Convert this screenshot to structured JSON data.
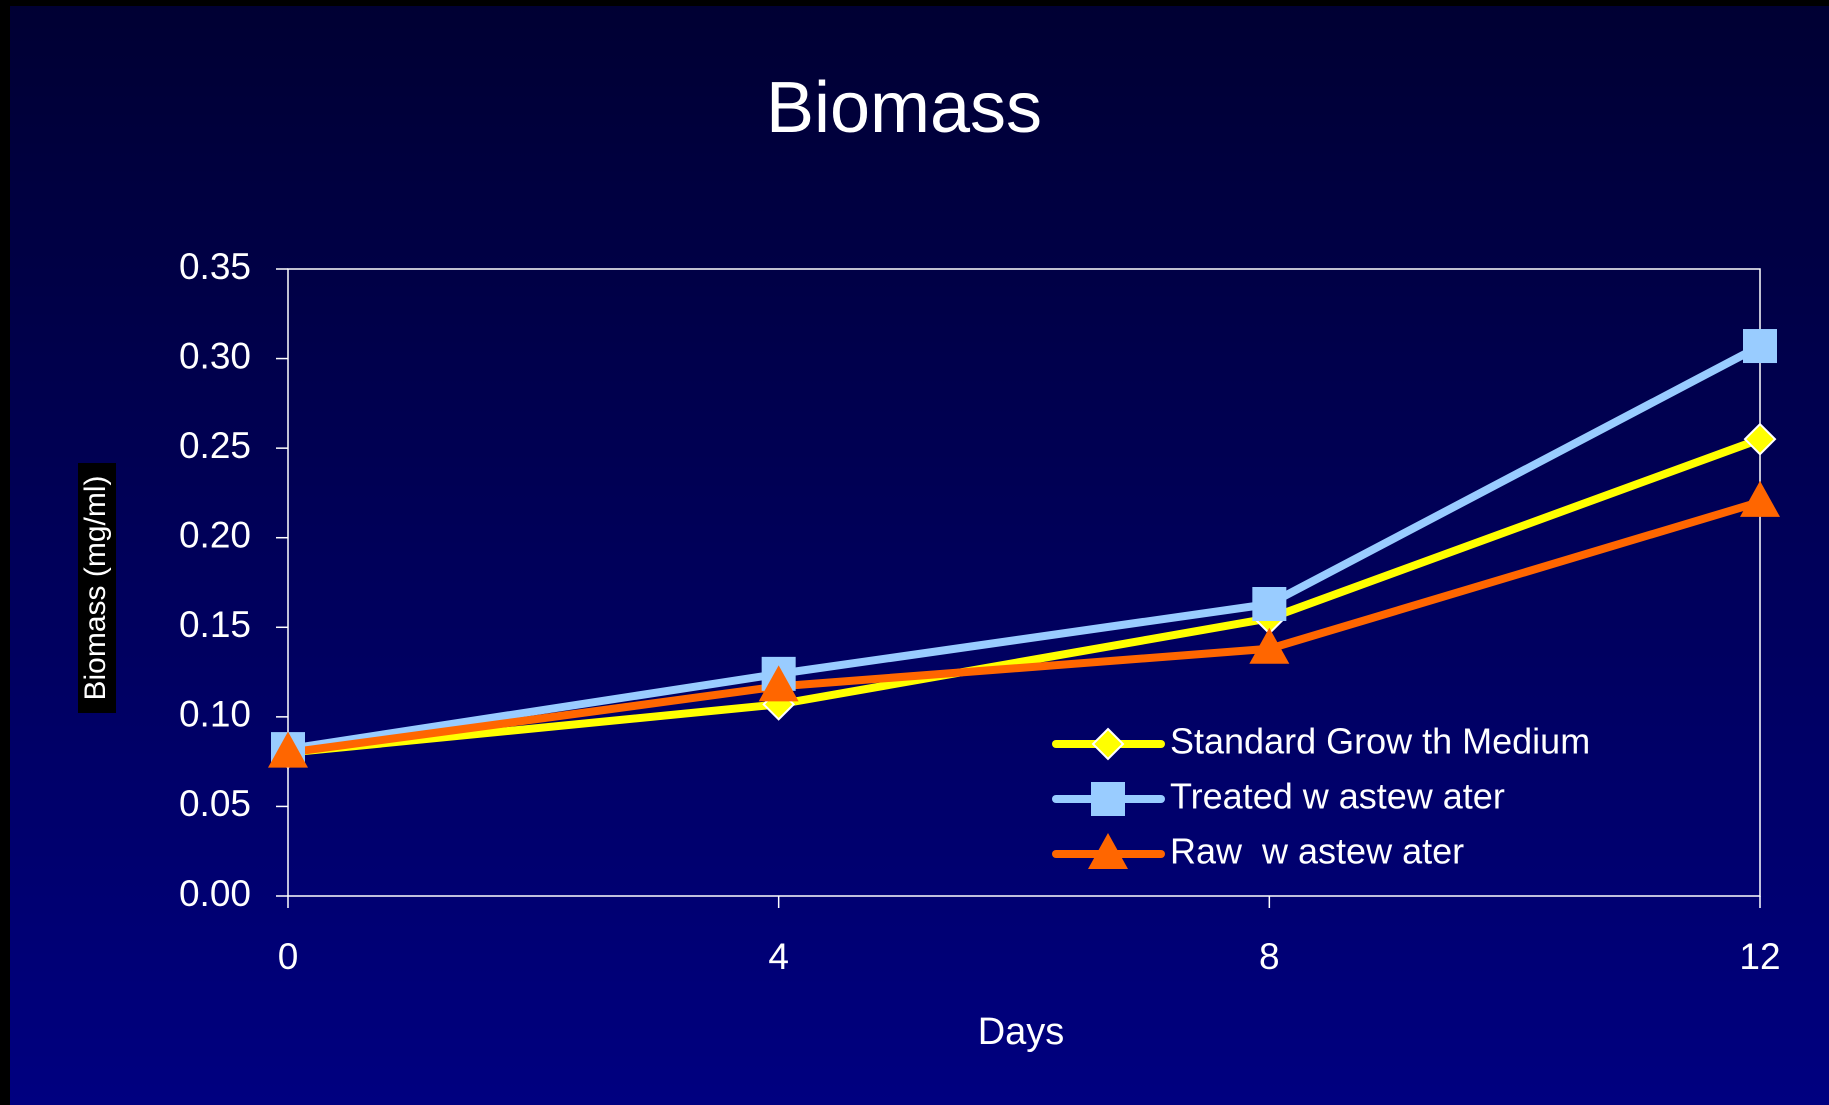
{
  "chart_data": {
    "type": "line",
    "title": "Biomass",
    "x_label": "Days",
    "y_label": "Biomass (mg/ml)",
    "x": [
      0,
      4,
      8,
      12
    ],
    "xlim": [
      0,
      12
    ],
    "xticks": [
      0,
      4,
      8,
      12
    ],
    "ylim": [
      0,
      0.35
    ],
    "yticks": [
      {
        "value": 0,
        "label": "0.00"
      },
      {
        "value": 0.05,
        "label": "0.05"
      },
      {
        "value": 0.1,
        "label": "0.10"
      },
      {
        "value": 0.15,
        "label": "0.15"
      },
      {
        "value": 0.2,
        "label": "0.20"
      },
      {
        "value": 0.25,
        "label": "0.25"
      },
      {
        "value": 0.3,
        "label": "0.30"
      },
      {
        "value": 0.35,
        "label": "0.35"
      }
    ],
    "grid": false,
    "legend": "lower right",
    "series": [
      {
        "name": "Standard Grow th Medium",
        "color": "#ffff00",
        "marker": "diamond",
        "values": [
          0.08,
          0.107,
          0.155,
          0.255
        ]
      },
      {
        "name": "Treated w astew ater",
        "color": "#99ccff",
        "marker": "square",
        "values": [
          0.082,
          0.124,
          0.163,
          0.307
        ]
      },
      {
        "name": "Raw  w astew ater",
        "color": "#ff6600",
        "marker": "triangle",
        "values": [
          0.08,
          0.117,
          0.138,
          0.22
        ]
      }
    ]
  }
}
